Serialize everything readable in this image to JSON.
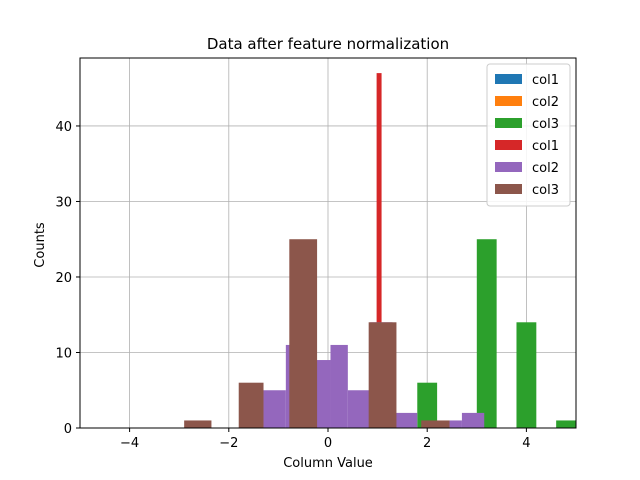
{
  "chart_data": {
    "type": "bar",
    "title": "Data after feature normalization",
    "xlabel": "Column Value",
    "ylabel": "Counts",
    "xlim": [
      -5,
      5
    ],
    "ylim": [
      0,
      49
    ],
    "xticks": [
      -4,
      -2,
      0,
      2,
      4
    ],
    "yticks": [
      0,
      10,
      20,
      30,
      40
    ],
    "grid": true,
    "legend_position": "top-right",
    "series": [
      {
        "name": "col1",
        "color": "#1f77b4",
        "bins": []
      },
      {
        "name": "col2",
        "color": "#ff7f0e",
        "bins": []
      },
      {
        "name": "col3",
        "color": "#2ca02c",
        "bins": [
          {
            "x0": 1.8,
            "x1": 2.2,
            "count": 6
          },
          {
            "x0": 2.2,
            "x1": 2.6,
            "count": 0
          },
          {
            "x0": 2.6,
            "x1": 3.0,
            "count": 0
          },
          {
            "x0": 3.0,
            "x1": 3.4,
            "count": 25
          },
          {
            "x0": 3.4,
            "x1": 3.8,
            "count": 0
          },
          {
            "x0": 3.8,
            "x1": 4.2,
            "count": 14
          },
          {
            "x0": 4.2,
            "x1": 4.6,
            "count": 0
          },
          {
            "x0": 4.6,
            "x1": 5.0,
            "count": 1
          }
        ]
      },
      {
        "name": "col1",
        "color": "#d62728",
        "bins": [
          {
            "x0": 0.98,
            "x1": 1.08,
            "count": 47
          }
        ]
      },
      {
        "name": "col2",
        "color": "#9467bd",
        "bins": [
          {
            "x0": -1.3,
            "x1": -0.85,
            "count": 5
          },
          {
            "x0": -0.85,
            "x1": -0.4,
            "count": 11
          },
          {
            "x0": -0.4,
            "x1": 0.05,
            "count": 9
          },
          {
            "x0": 0.05,
            "x1": 0.4,
            "count": 11
          },
          {
            "x0": 0.4,
            "x1": 0.85,
            "count": 5
          },
          {
            "x0": 0.85,
            "x1": 1.3,
            "count": 14
          },
          {
            "x0": 1.3,
            "x1": 1.8,
            "count": 2
          },
          {
            "x0": 1.8,
            "x1": 2.45,
            "count": 0
          },
          {
            "x0": 2.45,
            "x1": 2.7,
            "count": 1
          },
          {
            "x0": 2.7,
            "x1": 3.15,
            "count": 2
          }
        ]
      },
      {
        "name": "col3",
        "color": "#8c564b",
        "bins": [
          {
            "x0": -2.9,
            "x1": -2.35,
            "count": 1
          },
          {
            "x0": -2.35,
            "x1": -1.8,
            "count": 0
          },
          {
            "x0": -1.8,
            "x1": -1.3,
            "count": 6
          },
          {
            "x0": -1.3,
            "x1": -0.78,
            "count": 0
          },
          {
            "x0": -0.78,
            "x1": -0.22,
            "count": 25
          },
          {
            "x0": -0.22,
            "x1": 0.3,
            "count": 0
          },
          {
            "x0": 0.3,
            "x1": 0.82,
            "count": 0
          },
          {
            "x0": 0.82,
            "x1": 1.38,
            "count": 14
          },
          {
            "x0": 1.38,
            "x1": 1.88,
            "count": 0
          },
          {
            "x0": 1.88,
            "x1": 2.45,
            "count": 1
          }
        ]
      }
    ]
  }
}
